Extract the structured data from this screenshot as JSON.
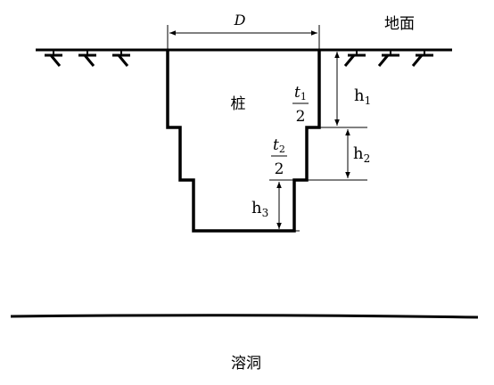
{
  "labels": {
    "diameter": "D",
    "ground": "地面",
    "pile": "桩",
    "karst_cave": "溶洞",
    "h1": "h",
    "h1_sub": "1",
    "h2": "h",
    "h2_sub": "2",
    "h3": "h",
    "h3_sub": "3",
    "t1_num": "t",
    "t1_num_sub": "1",
    "t1_den": "2",
    "t2_num": "t",
    "t2_num_sub": "2",
    "t2_den": "2"
  },
  "colors": {
    "stroke": "#000000",
    "background": "#ffffff"
  }
}
